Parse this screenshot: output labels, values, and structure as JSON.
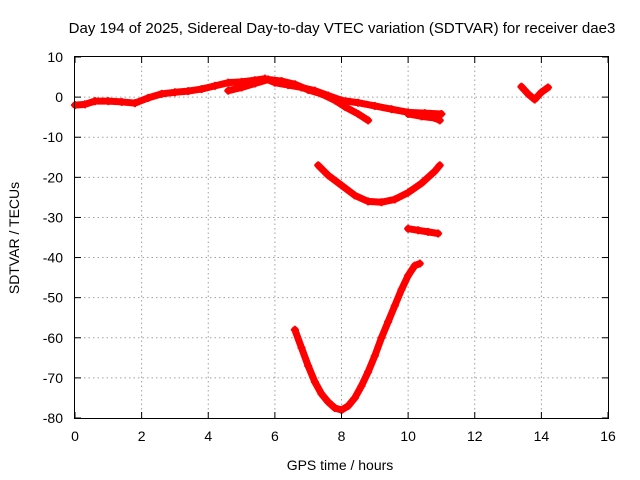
{
  "chart_data": {
    "type": "scatter",
    "title": "Day 194 of 2025, Sidereal Day-to-day VTEC variation (SDTVAR) for receiver dae3",
    "xlabel": "GPS time / hours",
    "ylabel": "SDTVAR / TECUs",
    "xlim": [
      0,
      16
    ],
    "ylim": [
      -80,
      10
    ],
    "xticks": [
      0,
      2,
      4,
      6,
      8,
      10,
      12,
      14,
      16
    ],
    "yticks": [
      10,
      0,
      -10,
      -20,
      -30,
      -40,
      -50,
      -60,
      -70,
      -80
    ],
    "grid": true,
    "legend": "none",
    "color": "#ff0000",
    "series": [
      {
        "x": [
          0.0,
          0.3,
          0.6,
          1.0,
          1.4,
          1.8,
          2.2,
          2.6,
          3.0,
          3.4,
          3.8,
          4.2,
          4.6,
          5.0,
          5.4,
          5.7,
          6.0,
          6.4,
          6.8,
          7.2,
          7.6,
          8.0,
          8.5,
          9.0,
          9.5,
          10.0,
          10.5,
          11.0
        ],
        "y": [
          -2.0,
          -1.8,
          -1.0,
          -1.0,
          -1.2,
          -1.5,
          -0.2,
          0.8,
          1.2,
          1.5,
          2.0,
          2.8,
          3.6,
          3.8,
          4.2,
          4.6,
          3.6,
          3.0,
          2.4,
          1.6,
          0.4,
          -0.8,
          -1.4,
          -2.2,
          -3.0,
          -3.8,
          -4.0,
          -4.2
        ]
      },
      {
        "x": [
          4.6,
          5.0,
          5.4,
          5.8,
          6.2,
          6.6,
          7.0,
          7.4,
          7.8,
          8.1,
          8.5,
          8.8
        ],
        "y": [
          1.6,
          2.4,
          3.4,
          4.4,
          4.0,
          3.2,
          1.8,
          0.8,
          -0.8,
          -2.4,
          -4.2,
          -5.8
        ]
      },
      {
        "x": [
          10.0,
          10.4,
          10.8,
          10.95
        ],
        "y": [
          -4.2,
          -4.8,
          -5.2,
          -5.8
        ]
      },
      {
        "x": [
          7.3,
          7.6,
          8.0,
          8.4,
          8.8,
          9.2,
          9.6,
          10.0,
          10.4,
          10.8,
          10.95
        ],
        "y": [
          -17.0,
          -19.5,
          -22.0,
          -24.5,
          -26.0,
          -26.2,
          -25.5,
          -23.8,
          -21.5,
          -18.5,
          -17.0
        ]
      },
      {
        "x": [
          10.0,
          10.3,
          10.6,
          10.9
        ],
        "y": [
          -32.8,
          -33.2,
          -33.6,
          -34.0
        ]
      },
      {
        "x": [
          6.6,
          6.8,
          7.0,
          7.2,
          7.4,
          7.6,
          7.8,
          8.0,
          8.2,
          8.4,
          8.6,
          8.8,
          9.0,
          9.2,
          9.4,
          9.6,
          9.8,
          10.0,
          10.2,
          10.35
        ],
        "y": [
          -58.0,
          -62.5,
          -67.0,
          -71.0,
          -74.0,
          -76.0,
          -77.5,
          -78.0,
          -77.0,
          -75.0,
          -72.0,
          -68.5,
          -64.5,
          -60.0,
          -56.0,
          -52.0,
          -48.0,
          -44.5,
          -42.0,
          -41.5
        ]
      },
      {
        "x": [
          13.4,
          13.6,
          13.8,
          14.0,
          14.2
        ],
        "y": [
          2.6,
          0.8,
          -0.6,
          1.2,
          2.4
        ]
      }
    ]
  }
}
